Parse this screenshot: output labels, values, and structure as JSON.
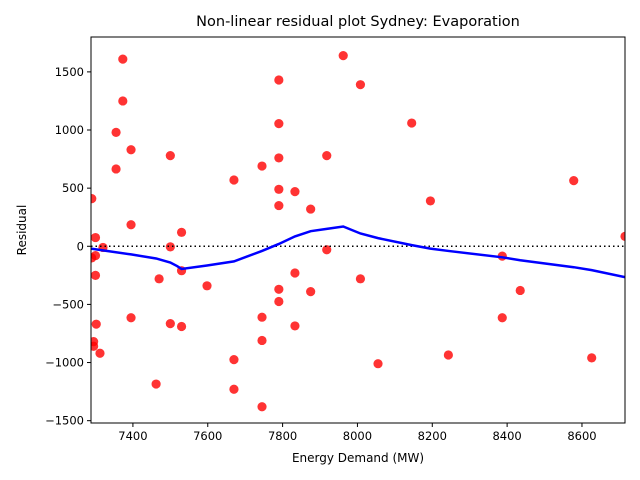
{
  "chart_data": {
    "type": "scatter",
    "title": "Non-linear residual plot Sydney: Evaporation",
    "xlabel": "Energy Demand (MW)",
    "ylabel": "Residual",
    "xlim": [
      7288,
      8715
    ],
    "ylim": [
      -1520,
      1800
    ],
    "xticks": [
      7400,
      7600,
      7800,
      8000,
      8200,
      8400,
      8600
    ],
    "yticks": [
      -1500,
      -1000,
      -500,
      0,
      500,
      1000,
      1500
    ],
    "grid": false,
    "zero_line": true,
    "colors": {
      "points": "#ff0000",
      "trend": "#0000ff",
      "zero_line": "#000000"
    },
    "points": [
      {
        "x": 7290,
        "y": 410
      },
      {
        "x": 7290,
        "y": -100
      },
      {
        "x": 7295,
        "y": -820
      },
      {
        "x": 7295,
        "y": -860
      },
      {
        "x": 7300,
        "y": 75
      },
      {
        "x": 7300,
        "y": -80
      },
      {
        "x": 7300,
        "y": -250
      },
      {
        "x": 7302,
        "y": -670
      },
      {
        "x": 7312,
        "y": -920
      },
      {
        "x": 7320,
        "y": -10
      },
      {
        "x": 7355,
        "y": 980
      },
      {
        "x": 7355,
        "y": 665
      },
      {
        "x": 7373,
        "y": 1610
      },
      {
        "x": 7373,
        "y": 1250
      },
      {
        "x": 7395,
        "y": 830
      },
      {
        "x": 7395,
        "y": 185
      },
      {
        "x": 7395,
        "y": -615
      },
      {
        "x": 7462,
        "y": -1185
      },
      {
        "x": 7470,
        "y": -280
      },
      {
        "x": 7500,
        "y": 780
      },
      {
        "x": 7500,
        "y": -5
      },
      {
        "x": 7500,
        "y": -665
      },
      {
        "x": 7530,
        "y": 120
      },
      {
        "x": 7530,
        "y": -210
      },
      {
        "x": 7530,
        "y": -690
      },
      {
        "x": 7598,
        "y": -340
      },
      {
        "x": 7670,
        "y": 570
      },
      {
        "x": 7670,
        "y": -975
      },
      {
        "x": 7670,
        "y": -1230
      },
      {
        "x": 7745,
        "y": 690
      },
      {
        "x": 7745,
        "y": -610
      },
      {
        "x": 7745,
        "y": -810
      },
      {
        "x": 7745,
        "y": -1380
      },
      {
        "x": 7790,
        "y": 1430
      },
      {
        "x": 7790,
        "y": 1055
      },
      {
        "x": 7790,
        "y": 760
      },
      {
        "x": 7790,
        "y": 490
      },
      {
        "x": 7790,
        "y": 350
      },
      {
        "x": 7790,
        "y": -370
      },
      {
        "x": 7790,
        "y": -475
      },
      {
        "x": 7833,
        "y": 470
      },
      {
        "x": 7833,
        "y": -230
      },
      {
        "x": 7833,
        "y": -685
      },
      {
        "x": 7875,
        "y": 320
      },
      {
        "x": 7875,
        "y": -390
      },
      {
        "x": 7918,
        "y": 780
      },
      {
        "x": 7918,
        "y": -30
      },
      {
        "x": 7962,
        "y": 1640
      },
      {
        "x": 8008,
        "y": 1390
      },
      {
        "x": 8008,
        "y": -280
      },
      {
        "x": 8055,
        "y": -1010
      },
      {
        "x": 8145,
        "y": 1060
      },
      {
        "x": 8195,
        "y": 390
      },
      {
        "x": 8243,
        "y": -935
      },
      {
        "x": 8387,
        "y": -85
      },
      {
        "x": 8387,
        "y": -615
      },
      {
        "x": 8435,
        "y": -380
      },
      {
        "x": 8578,
        "y": 565
      },
      {
        "x": 8626,
        "y": -960
      },
      {
        "x": 8715,
        "y": 85
      }
    ],
    "trend_line": [
      {
        "x": 7288,
        "y": -20
      },
      {
        "x": 7320,
        "y": -35
      },
      {
        "x": 7395,
        "y": -70
      },
      {
        "x": 7462,
        "y": -105
      },
      {
        "x": 7500,
        "y": -140
      },
      {
        "x": 7518,
        "y": -170
      },
      {
        "x": 7530,
        "y": -195
      },
      {
        "x": 7598,
        "y": -165
      },
      {
        "x": 7670,
        "y": -130
      },
      {
        "x": 7745,
        "y": -40
      },
      {
        "x": 7790,
        "y": 20
      },
      {
        "x": 7833,
        "y": 85
      },
      {
        "x": 7875,
        "y": 130
      },
      {
        "x": 7918,
        "y": 150
      },
      {
        "x": 7962,
        "y": 170
      },
      {
        "x": 8008,
        "y": 110
      },
      {
        "x": 8055,
        "y": 70
      },
      {
        "x": 8145,
        "y": 10
      },
      {
        "x": 8195,
        "y": -20
      },
      {
        "x": 8243,
        "y": -40
      },
      {
        "x": 8387,
        "y": -95
      },
      {
        "x": 8435,
        "y": -120
      },
      {
        "x": 8578,
        "y": -180
      },
      {
        "x": 8626,
        "y": -205
      },
      {
        "x": 8715,
        "y": -265
      }
    ]
  }
}
